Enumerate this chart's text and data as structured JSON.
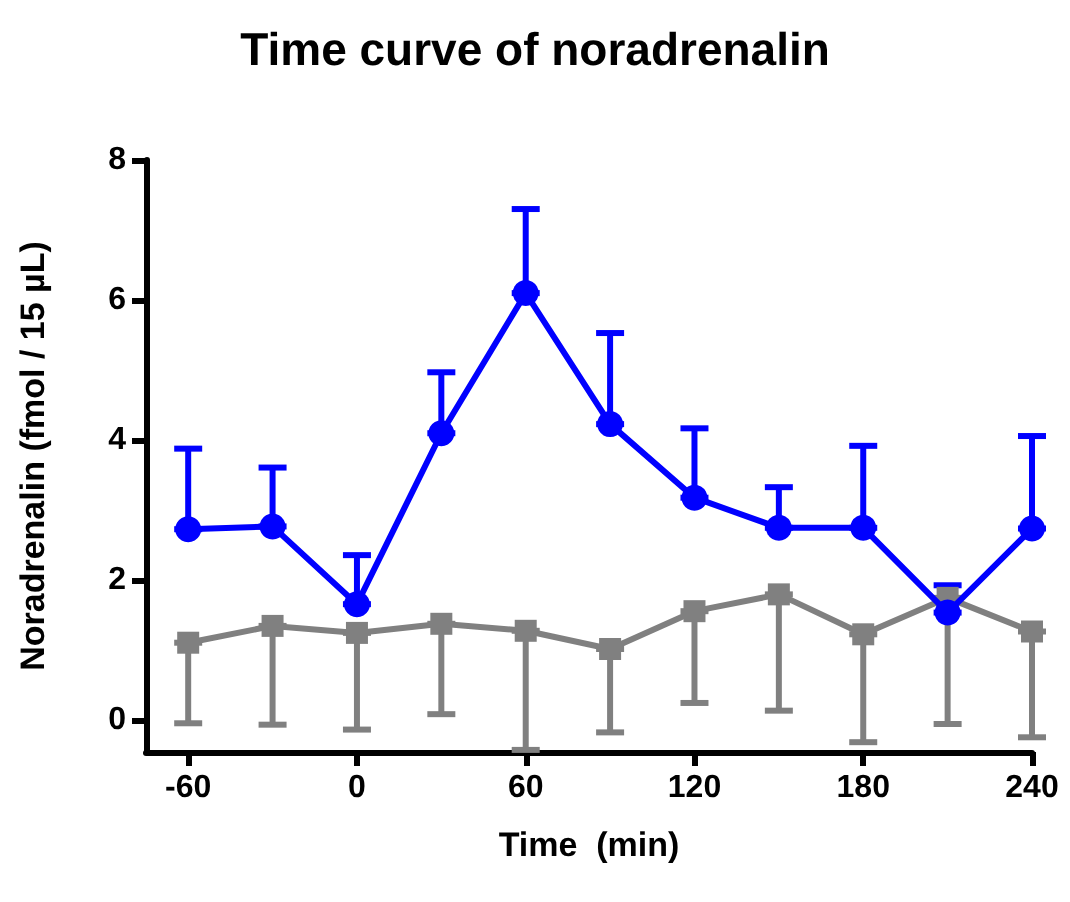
{
  "chart_data": {
    "type": "line",
    "title": "Time curve of noradrenalin",
    "xlabel": "Time  (min)",
    "ylabel": "Noradrenalin (fmol / 15 µL)",
    "x": [
      -60,
      -30,
      0,
      30,
      60,
      90,
      120,
      150,
      180,
      210,
      240
    ],
    "series": [
      {
        "color": "#0000ff",
        "marker": "circle",
        "values": [
          2.73,
          2.77,
          1.66,
          4.1,
          6.1,
          4.23,
          3.18,
          2.75,
          2.75,
          1.54,
          2.74
        ],
        "errors": [
          [
            2.73,
            3.88
          ],
          [
            2.77,
            3.61
          ],
          [
            1.66,
            2.36
          ],
          [
            4.1,
            4.97
          ],
          [
            6.1,
            7.3
          ],
          [
            4.23,
            5.53
          ],
          [
            3.18,
            4.17
          ],
          [
            2.75,
            3.33
          ],
          [
            2.75,
            3.92
          ],
          [
            1.54,
            1.93
          ],
          [
            2.74,
            4.06
          ]
        ]
      },
      {
        "color": "#808080",
        "marker": "square",
        "values": [
          1.11,
          1.35,
          1.25,
          1.38,
          1.28,
          1.02,
          1.56,
          1.8,
          1.23,
          1.75,
          1.27
        ],
        "errors": [
          [
            -0.04,
            1.11
          ],
          [
            -0.06,
            1.35
          ],
          [
            -0.13,
            1.25
          ],
          [
            0.09,
            1.38
          ],
          [
            -0.42,
            1.28
          ],
          [
            -0.17,
            1.02
          ],
          [
            0.25,
            1.56
          ],
          [
            0.14,
            1.8
          ],
          [
            -0.31,
            1.23
          ],
          [
            -0.05,
            1.75
          ],
          [
            -0.24,
            1.27
          ]
        ]
      }
    ],
    "xlim": [
      -75,
      240
    ],
    "xticks": [
      -60,
      0,
      60,
      120,
      180,
      240
    ],
    "ylim": [
      -0.45,
      8
    ],
    "yticks": [
      0,
      2,
      4,
      6,
      8
    ]
  }
}
